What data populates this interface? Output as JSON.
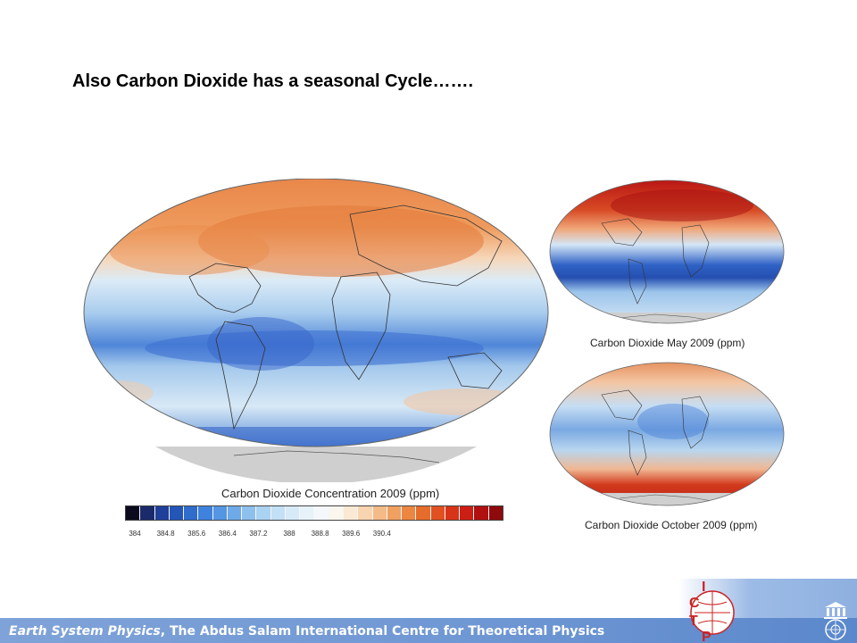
{
  "slide": {
    "title": "Also Carbon Dioxide has a seasonal Cycle……."
  },
  "main_map": {
    "caption": "Carbon Dioxide Concentration 2009 (ppm)"
  },
  "colorbar": {
    "tick_labels": [
      "384",
      "384.8",
      "385.6",
      "386.4",
      "387.2",
      "388",
      "388.8",
      "389.6",
      "390.4"
    ],
    "colors": [
      "#0b0b1e",
      "#1a2a6a",
      "#1f3f9a",
      "#2456b8",
      "#2f6ccc",
      "#3f82dc",
      "#5596e4",
      "#6eaae8",
      "#8ec0ee",
      "#aad2f2",
      "#c2e0f6",
      "#d6eaf8",
      "#e6f2fa",
      "#f4f8fb",
      "#fbf6ee",
      "#fbe9d4",
      "#f8d4b0",
      "#f4bb88",
      "#f0a060",
      "#ec8640",
      "#e66c2c",
      "#e05020",
      "#d83418",
      "#cc1e14",
      "#b01010",
      "#8e0a0c"
    ]
  },
  "may_map": {
    "caption": "Carbon Dioxide May 2009 (ppm)"
  },
  "october_map": {
    "caption": "Carbon Dioxide October 2009 (ppm)"
  },
  "footer": {
    "italic_part": "Earth System Physics",
    "rest": ", The Abdus Salam International Centre for Theoretical Physics",
    "logo_letters": [
      "I",
      "C",
      "T",
      "P"
    ]
  },
  "palette": {
    "orange": "#e9874a",
    "red": "#c92a1c",
    "blue": "#3563c9",
    "light_blue": "#b9d6ef",
    "antarctica_gray": "#cfcfcf"
  }
}
